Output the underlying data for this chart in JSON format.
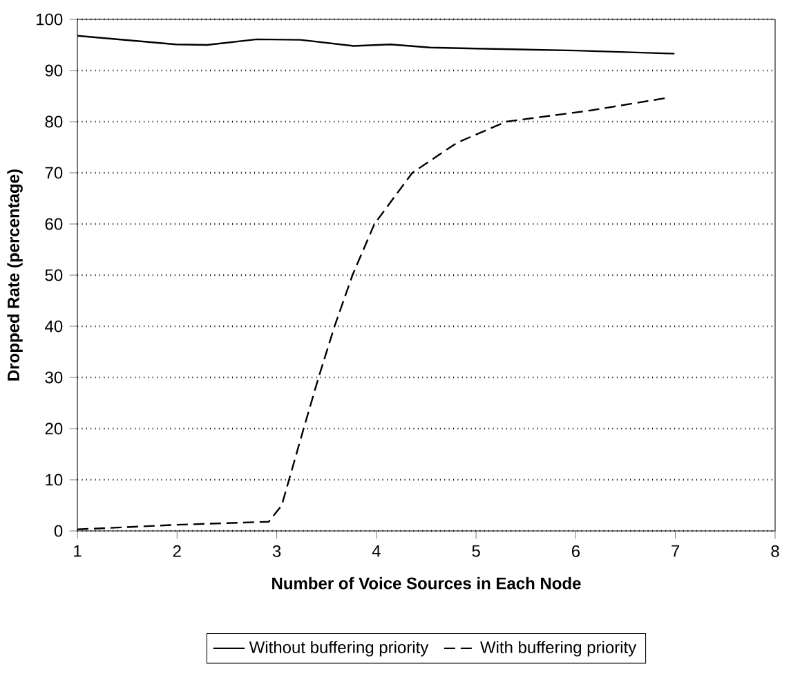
{
  "chart_data": {
    "type": "line",
    "xlabel": "Number of Voice Sources in Each Node",
    "ylabel": "Dropped Rate (percentage)",
    "xlim": [
      1,
      8
    ],
    "ylim": [
      0,
      100
    ],
    "xticks": [
      1,
      2,
      3,
      4,
      5,
      6,
      7,
      8
    ],
    "yticks": [
      0,
      10,
      20,
      30,
      40,
      50,
      60,
      70,
      80,
      90,
      100
    ],
    "grid": "y",
    "legend": "bottom",
    "marker": "none",
    "series": [
      {
        "name": "Without buffering priority",
        "color": "#000000",
        "line_style": "solid",
        "x": [
          1,
          1.99,
          2.3,
          2.8,
          3.24,
          3.77,
          4.14,
          4.54,
          5,
          6,
          6.99
        ],
        "values": [
          96.8,
          95.1,
          95.0,
          96.1,
          96.0,
          94.8,
          95.1,
          94.5,
          94.3,
          93.9,
          93.3
        ]
      },
      {
        "name": "With buffering priority",
        "color": "#000000",
        "line_style": "dashed",
        "x": [
          1,
          2,
          2.92,
          3.05,
          3.27,
          3.42,
          3.58,
          3.76,
          3.98,
          4.36,
          4.81,
          5.3,
          6.15,
          6.93
        ],
        "values": [
          0.3,
          1.2,
          1.8,
          5,
          20,
          30,
          40,
          50,
          60,
          70,
          75.9,
          80,
          82.2,
          84.7
        ]
      }
    ]
  }
}
